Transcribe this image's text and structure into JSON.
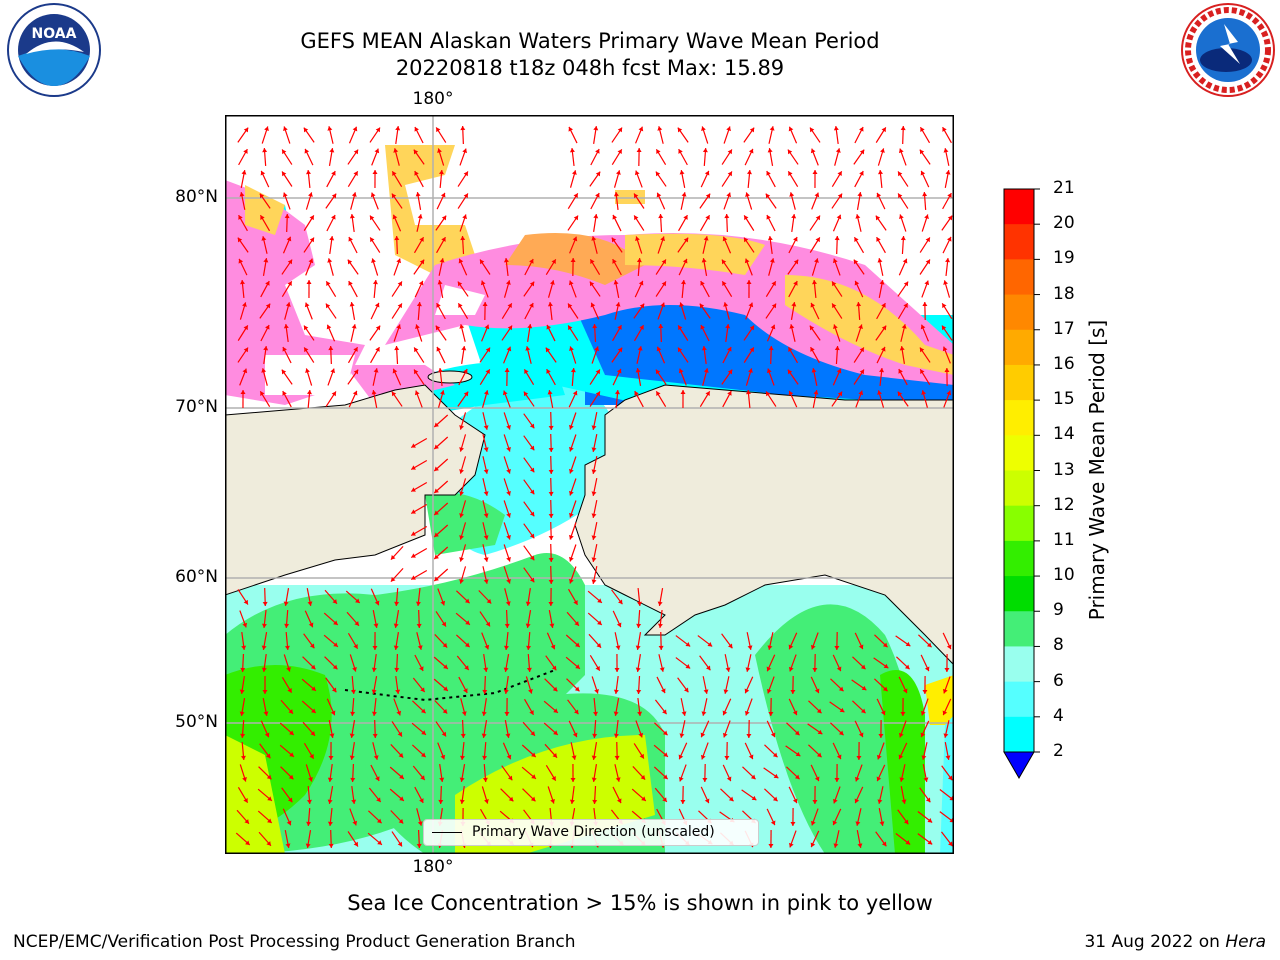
{
  "header": {
    "title_line1": "GEFS MEAN Alaskan Waters Primary Wave Mean Period",
    "title_line2": "20220818 t18z 048h fcst   Max: 15.89"
  },
  "map": {
    "lon_label_top": "180°",
    "lon_label_bottom": "180°",
    "lat_labels": [
      "80°N",
      "70°N",
      "60°N",
      "50°N"
    ],
    "legend_text": "Primary Wave Direction (unscaled)",
    "colors": {
      "land": "#efecdc",
      "ice_pink": "#ff8ce0",
      "ice_yellow": "#ffd55a",
      "arrow": "#ff0000",
      "grid": "#b0b0b0"
    }
  },
  "colorbar": {
    "title": "Primary Wave Mean Period [s]",
    "ticks": [
      "21",
      "20",
      "19",
      "18",
      "17",
      "16",
      "15",
      "14",
      "13",
      "12",
      "11",
      "10",
      "9",
      "8",
      "6",
      "4",
      "2"
    ],
    "colors": [
      "#ff0000",
      "#ff3300",
      "#ff6600",
      "#ff8800",
      "#ffaa00",
      "#ffcc00",
      "#ffee00",
      "#eeff00",
      "#ccff00",
      "#88ff00",
      "#33ee00",
      "#00dd00",
      "#44ee77",
      "#99ffee",
      "#55ffff",
      "#00ffff",
      "#0077ff"
    ],
    "extend_color": "#0000ff"
  },
  "footer": {
    "note": "Sea Ice Concentration > 15% is shown in pink to yellow",
    "credit_left": "NCEP/EMC/Verification Post Processing Product Generation Branch",
    "credit_right_prefix": "31 Aug 2022 on",
    "credit_right_host": "Hera"
  },
  "logos": {
    "left": {
      "icon": "noaa-logo",
      "text": "NOAA"
    },
    "right": {
      "icon": "nws-logo"
    }
  }
}
